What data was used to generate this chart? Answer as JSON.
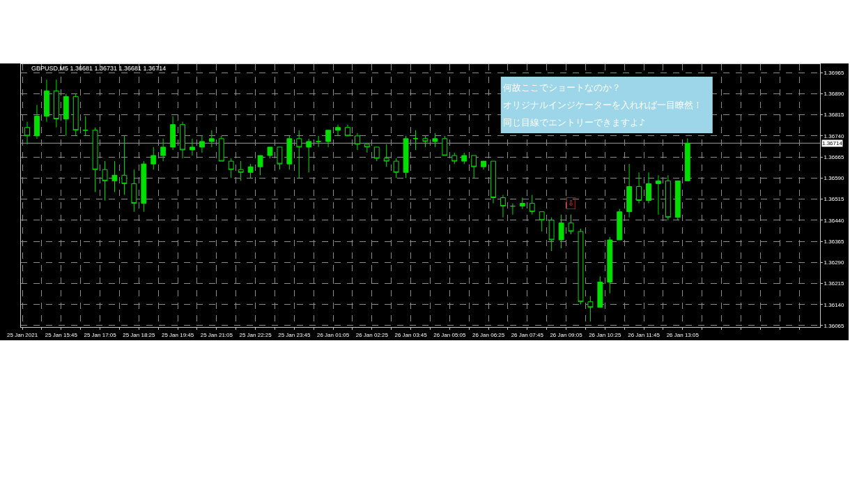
{
  "chart_data": {
    "type": "candlestick",
    "title": "GBPUSD,M5 1.36681 1.36731 1.36681 1.36714",
    "color": "#00e000",
    "grid": true,
    "x": [
      "2021-01-25T14:35",
      "2021-01-25T14:55",
      "2021-01-25T15:15",
      "2021-01-25T15:35",
      "2021-01-25T15:55",
      "2021-01-25T16:15",
      "2021-01-25T16:35",
      "2021-01-25T16:55",
      "2021-01-25T17:15",
      "2021-01-25T17:35",
      "2021-01-25T17:55",
      "2021-01-25T18:15",
      "2021-01-25T18:35",
      "2021-01-25T18:55",
      "2021-01-25T19:15",
      "2021-01-25T19:35",
      "2021-01-25T19:55",
      "2021-01-25T20:15",
      "2021-01-25T20:35",
      "2021-01-25T20:55",
      "2021-01-25T21:15",
      "2021-01-25T21:35",
      "2021-01-25T21:55",
      "2021-01-25T22:15",
      "2021-01-25T22:35",
      "2021-01-25T22:55",
      "2021-01-25T23:15",
      "2021-01-25T23:35",
      "2021-01-25T23:55",
      "2021-01-26T00:15",
      "2021-01-26T00:35",
      "2021-01-26T00:55",
      "2021-01-26T01:15",
      "2021-01-26T01:35",
      "2021-01-26T01:55",
      "2021-01-26T02:15",
      "2021-01-26T02:35",
      "2021-01-26T02:55",
      "2021-01-26T03:15",
      "2021-01-26T03:35",
      "2021-01-26T03:55",
      "2021-01-26T04:15",
      "2021-01-26T04:35",
      "2021-01-26T04:55",
      "2021-01-26T05:15",
      "2021-01-26T05:35",
      "2021-01-26T05:55",
      "2021-01-26T06:15",
      "2021-01-26T06:35",
      "2021-01-26T06:55",
      "2021-01-26T07:15",
      "2021-01-26T07:35",
      "2021-01-26T07:55",
      "2021-01-26T08:15",
      "2021-01-26T08:35",
      "2021-01-26T08:55",
      "2021-01-26T09:15",
      "2021-01-26T09:35",
      "2021-01-26T09:55",
      "2021-01-26T10:15",
      "2021-01-26T10:35",
      "2021-01-26T10:55",
      "2021-01-26T11:15",
      "2021-01-26T11:35",
      "2021-01-26T11:55",
      "2021-01-26T12:15",
      "2021-01-26T12:35",
      "2021-01-26T12:55",
      "2021-01-26T13:15"
    ],
    "ohlc": [
      [
        1.3677,
        1.3679,
        1.3671,
        1.3674
      ],
      [
        1.3674,
        1.3685,
        1.3673,
        1.3681
      ],
      [
        1.3681,
        1.3694,
        1.3679,
        1.369
      ],
      [
        1.369,
        1.3694,
        1.3677,
        1.368
      ],
      [
        1.368,
        1.3689,
        1.3674,
        1.3688
      ],
      [
        1.3688,
        1.3689,
        1.3674,
        1.3676
      ],
      [
        1.3676,
        1.3681,
        1.3674,
        1.3676
      ],
      [
        1.3676,
        1.3677,
        1.3654,
        1.3662
      ],
      [
        1.3662,
        1.3665,
        1.3651,
        1.3658
      ],
      [
        1.3658,
        1.3665,
        1.3654,
        1.366
      ],
      [
        1.366,
        1.3674,
        1.3653,
        1.3657
      ],
      [
        1.3657,
        1.3662,
        1.3647,
        1.365
      ],
      [
        1.365,
        1.3665,
        1.3647,
        1.3664
      ],
      [
        1.3664,
        1.367,
        1.3662,
        1.3667
      ],
      [
        1.3667,
        1.3673,
        1.3665,
        1.367
      ],
      [
        1.367,
        1.3681,
        1.3669,
        1.3678
      ],
      [
        1.3678,
        1.3679,
        1.3666,
        1.3669
      ],
      [
        1.3669,
        1.3673,
        1.3667,
        1.367
      ],
      [
        1.367,
        1.3674,
        1.3668,
        1.3672
      ],
      [
        1.3672,
        1.3676,
        1.367,
        1.3673
      ],
      [
        1.3673,
        1.3674,
        1.3665,
        1.3665
      ],
      [
        1.3665,
        1.3666,
        1.3659,
        1.3662
      ],
      [
        1.3662,
        1.3665,
        1.3658,
        1.3661
      ],
      [
        1.3661,
        1.3664,
        1.3659,
        1.3663
      ],
      [
        1.3663,
        1.3667,
        1.366,
        1.3667
      ],
      [
        1.3667,
        1.367,
        1.3666,
        1.367
      ],
      [
        1.367,
        1.367,
        1.3662,
        1.3664
      ],
      [
        1.3664,
        1.3674,
        1.3662,
        1.3673
      ],
      [
        1.3673,
        1.3676,
        1.3659,
        1.367
      ],
      [
        1.367,
        1.3673,
        1.3661,
        1.3672
      ],
      [
        1.3672,
        1.3674,
        1.367,
        1.3672
      ],
      [
        1.3672,
        1.3676,
        1.367,
        1.3676
      ],
      [
        1.3676,
        1.3678,
        1.3674,
        1.3677
      ],
      [
        1.3677,
        1.3678,
        1.3674,
        1.3674
      ],
      [
        1.3674,
        1.3675,
        1.3669,
        1.3671
      ],
      [
        1.3671,
        1.3671,
        1.3668,
        1.367
      ],
      [
        1.367,
        1.367,
        1.3665,
        1.3666
      ],
      [
        1.3666,
        1.3671,
        1.3663,
        1.3665
      ],
      [
        1.3665,
        1.3666,
        1.3659,
        1.3661
      ],
      [
        1.3661,
        1.3674,
        1.3659,
        1.3673
      ],
      [
        1.3673,
        1.3676,
        1.3669,
        1.3673
      ],
      [
        1.3673,
        1.3674,
        1.367,
        1.3672
      ],
      [
        1.3672,
        1.3675,
        1.367,
        1.3673
      ],
      [
        1.3673,
        1.3674,
        1.3667,
        1.3667
      ],
      [
        1.3667,
        1.3668,
        1.3664,
        1.3665
      ],
      [
        1.3665,
        1.3668,
        1.3664,
        1.3667
      ],
      [
        1.3667,
        1.3667,
        1.3659,
        1.3663
      ],
      [
        1.3663,
        1.3665,
        1.3662,
        1.3665
      ],
      [
        1.3665,
        1.3665,
        1.365,
        1.3652
      ],
      [
        1.3652,
        1.3653,
        1.3645,
        1.3649
      ],
      [
        1.3649,
        1.365,
        1.3646,
        1.3649
      ],
      [
        1.3649,
        1.3652,
        1.3648,
        1.365
      ],
      [
        1.365,
        1.3653,
        1.3646,
        1.3647
      ],
      [
        1.3647,
        1.3647,
        1.364,
        1.3644
      ],
      [
        1.3644,
        1.3645,
        1.3633,
        1.3637
      ],
      [
        1.3637,
        1.3646,
        1.3634,
        1.3643
      ],
      [
        1.3643,
        1.3646,
        1.3639,
        1.364
      ],
      [
        1.364,
        1.3641,
        1.3614,
        1.3615
      ],
      [
        1.3615,
        1.3617,
        1.3608,
        1.3613
      ],
      [
        1.3613,
        1.3624,
        1.3613,
        1.3622
      ],
      [
        1.3622,
        1.3638,
        1.3618,
        1.3637
      ],
      [
        1.3637,
        1.3648,
        1.3637,
        1.3647
      ],
      [
        1.3647,
        1.3664,
        1.3645,
        1.3656
      ],
      [
        1.3656,
        1.3661,
        1.365,
        1.3651
      ],
      [
        1.3651,
        1.3661,
        1.365,
        1.3657
      ],
      [
        1.3657,
        1.366,
        1.3646,
        1.3658
      ],
      [
        1.3658,
        1.366,
        1.3644,
        1.3645
      ],
      [
        1.3645,
        1.3658,
        1.3644,
        1.3658
      ],
      [
        1.3658,
        1.36731,
        1.3658,
        1.36714
      ]
    ],
    "xlim": [
      "2021-01-25T14:22",
      "2021-01-26T17:48"
    ],
    "ylim": [
      1.3606,
      1.36995
    ],
    "xticks": [
      {
        "value": "2021-01-25T14:25",
        "label": "25 Jan 2021"
      },
      {
        "value": "2021-01-25T15:05",
        "label": null
      },
      {
        "value": "2021-01-25T15:45",
        "label": "25 Jan 15:45"
      },
      {
        "value": "2021-01-25T16:25",
        "label": null
      },
      {
        "value": "2021-01-25T17:05",
        "label": "25 Jan 17:05"
      },
      {
        "value": "2021-01-25T17:45",
        "label": null
      },
      {
        "value": "2021-01-25T18:25",
        "label": "25 Jan 18:25"
      },
      {
        "value": "2021-01-25T19:05",
        "label": null
      },
      {
        "value": "2021-01-25T19:45",
        "label": "25 Jan 19:45"
      },
      {
        "value": "2021-01-25T20:25",
        "label": null
      },
      {
        "value": "2021-01-25T21:05",
        "label": "25 Jan 21:05"
      },
      {
        "value": "2021-01-25T21:45",
        "label": null
      },
      {
        "value": "2021-01-25T22:25",
        "label": "25 Jan 22:25"
      },
      {
        "value": "2021-01-25T23:05",
        "label": null
      },
      {
        "value": "2021-01-25T23:45",
        "label": "25 Jan 23:45"
      },
      {
        "value": "2021-01-26T00:25",
        "label": null
      },
      {
        "value": "2021-01-26T01:05",
        "label": "26 Jan 01:05"
      },
      {
        "value": "2021-01-26T01:45",
        "label": null
      },
      {
        "value": "2021-01-26T02:25",
        "label": "26 Jan 02:25"
      },
      {
        "value": "2021-01-26T03:05",
        "label": null
      },
      {
        "value": "2021-01-26T03:45",
        "label": "26 Jan 03:45"
      },
      {
        "value": "2021-01-26T04:25",
        "label": null
      },
      {
        "value": "2021-01-26T05:05",
        "label": "26 Jan 05:05"
      },
      {
        "value": "2021-01-26T05:45",
        "label": null
      },
      {
        "value": "2021-01-26T06:25",
        "label": "26 Jan 06:25"
      },
      {
        "value": "2021-01-26T07:05",
        "label": null
      },
      {
        "value": "2021-01-26T07:45",
        "label": "26 Jan 07:45"
      },
      {
        "value": "2021-01-26T08:25",
        "label": null
      },
      {
        "value": "2021-01-26T09:05",
        "label": "26 Jan 09:05"
      },
      {
        "value": "2021-01-26T09:45",
        "label": null
      },
      {
        "value": "2021-01-26T10:25",
        "label": "26 Jan 10:25"
      },
      {
        "value": "2021-01-26T11:05",
        "label": null
      },
      {
        "value": "2021-01-26T11:45",
        "label": "26 Jan 11:45"
      },
      {
        "value": "2021-01-26T12:25",
        "label": null
      },
      {
        "value": "2021-01-26T13:05",
        "label": "26 Jan 13:05"
      },
      {
        "value": "2021-01-26T13:45",
        "label": null
      },
      {
        "value": "2021-01-26T14:25",
        "label": null
      },
      {
        "value": "2021-01-26T15:05",
        "label": null
      },
      {
        "value": "2021-01-26T15:45",
        "label": null
      },
      {
        "value": "2021-01-26T16:25",
        "label": null
      },
      {
        "value": "2021-01-26T17:05",
        "label": null
      }
    ],
    "yticks": [
      1.36065,
      {
        "value": 1.3614,
        "label": "1.36140"
      },
      1.36215,
      {
        "value": 1.3629,
        "label": "1.36290"
      },
      1.36365,
      {
        "value": 1.3644,
        "label": "1.36440"
      },
      1.36515,
      {
        "value": 1.3659,
        "label": "1.36590"
      },
      1.36665,
      {
        "value": 1.3674,
        "label": "1.36740"
      },
      1.36815,
      {
        "value": 1.3689,
        "label": "1.36890"
      },
      1.36965
    ],
    "ref_lines": [
      {
        "axis": "y",
        "value": 1.36714,
        "label": "1.36714",
        "color": "#a0a0a0"
      }
    ],
    "annotations": [
      "何故ここでショートなのか？",
      "オリジナルインジケーターを入れれば一目瞭然！",
      "同じ目線でエントリーできますよ♪",
      {
        "text": "⇩",
        "x": "2021-01-26T09:15",
        "y": 1.365
      }
    ]
  }
}
